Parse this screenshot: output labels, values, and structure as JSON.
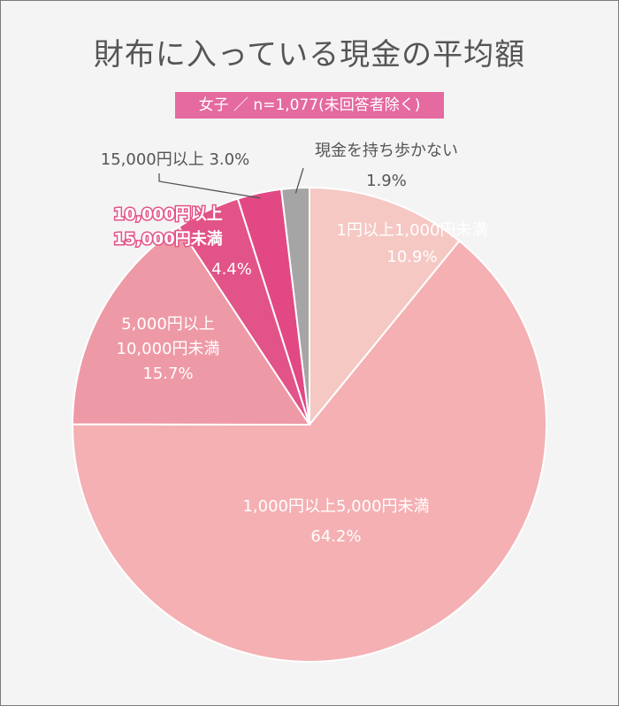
{
  "title": "財布に入っている現金の平均額",
  "subtitle": "女子 ／ n=1,077(未回答者除く)",
  "chart_data": {
    "type": "pie",
    "title": "財布に入っている現金の平均額",
    "subtitle": "女子 ／ n=1,077(未回答者除く)",
    "start": "12 o'clock",
    "direction": "clockwise",
    "slices": [
      {
        "label_lines": [
          "1円以上1,000円未満"
        ],
        "value": 10.9,
        "pct": "10.9%",
        "color": "#f5c8c4",
        "label_color": "#ffffff"
      },
      {
        "label_lines": [
          "1,000円以上5,000円未満"
        ],
        "value": 64.2,
        "pct": "64.2%",
        "color": "#f4b0b3",
        "label_color": "#ffffff"
      },
      {
        "label_lines": [
          "5,000円以上",
          "10,000円未満"
        ],
        "value": 15.7,
        "pct": "15.7%",
        "color": "#ee99a6",
        "label_color": "#ffffff"
      },
      {
        "label_lines": [
          "10,000円以上",
          "15,000円未満"
        ],
        "value": 4.4,
        "pct": "4.4%",
        "color": "#e25388",
        "label_color": "#ffffff"
      },
      {
        "label_lines": [
          "15,000円以上"
        ],
        "value": 3.0,
        "pct": "3.0%",
        "color": "#e24884",
        "label_color": "#555555"
      },
      {
        "label_lines": [
          "現金を持ち歩かない"
        ],
        "value": 1.9,
        "pct": "1.9%",
        "color": "#a5a5a5",
        "label_color": "#555555"
      }
    ]
  }
}
